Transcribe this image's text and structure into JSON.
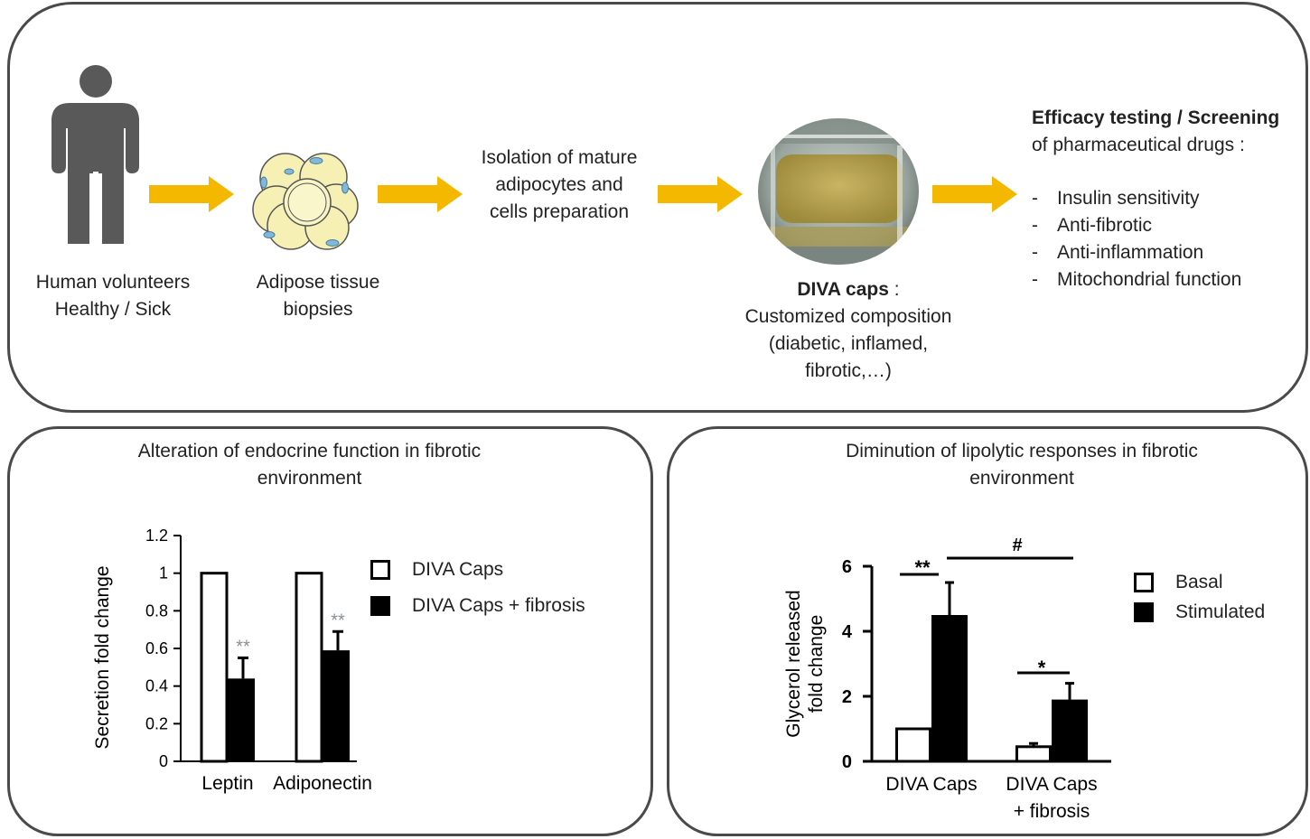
{
  "top": {
    "human_label": [
      "Human volunteers",
      "Healthy / Sick"
    ],
    "adipose_label": [
      "Adipose tissue",
      "biopsies"
    ],
    "isolation_label": [
      "Isolation of mature",
      "adipocytes and",
      "cells preparation"
    ],
    "diva_title": "DIVA caps",
    "diva_colon": " :",
    "diva_desc": [
      "Customized composition",
      "(diabetic, inflamed,",
      "fibrotic,…)"
    ],
    "efficacy_bold": "Efficacy testing / Screening",
    "efficacy_rest": "of pharmaceutical drugs :",
    "efficacy_items": [
      "Insulin sensitivity",
      "Anti-fibrotic",
      "Anti-inflammation",
      "Mitochondrial function"
    ],
    "dash": "-",
    "arrow_color": "#F5B800",
    "person_color": "#595959"
  },
  "left_panel": {
    "title": [
      "Alteration of endocrine function in fibrotic",
      "environment"
    ],
    "legend": [
      "DIVA Caps",
      "DIVA Caps + fibrosis"
    ]
  },
  "right_panel": {
    "title": [
      "Diminution of lipolytic responses in fibrotic",
      "environment"
    ],
    "legend": [
      "Basal",
      "Stimulated"
    ]
  },
  "chart_data": [
    {
      "type": "bar",
      "ylabel": "Secretion fold change",
      "ylim": [
        0,
        1.2
      ],
      "yticks": [
        0,
        0.2,
        0.4,
        0.6,
        0.8,
        1,
        1.2
      ],
      "ytick_labels": [
        "0",
        "0.2",
        "0.4",
        "0.6",
        "0.8",
        "1",
        "1.2"
      ],
      "categories": [
        "Leptin",
        "Adiponectin"
      ],
      "series": [
        {
          "name": "DIVA Caps",
          "values": [
            1.0,
            1.0
          ],
          "errors": [
            0,
            0
          ]
        },
        {
          "name": "DIVA Caps + fibrosis",
          "values": [
            0.44,
            0.59
          ],
          "errors": [
            0.11,
            0.1
          ]
        }
      ],
      "annotations": [
        "**",
        "**"
      ],
      "annotation_color": "#8a8f95"
    },
    {
      "type": "bar",
      "ylabel": [
        "Glycerol released",
        "fold change"
      ],
      "ylim": [
        0,
        6
      ],
      "yticks": [
        0,
        2,
        4,
        6
      ],
      "ytick_labels": [
        "0",
        "2",
        "4",
        "6"
      ],
      "categories": [
        [
          "DIVA Caps"
        ],
        [
          "DIVA Caps",
          "+ fibrosis"
        ]
      ],
      "series": [
        {
          "name": "Basal",
          "values": [
            1.0,
            0.45
          ],
          "errors": [
            0,
            0.1
          ]
        },
        {
          "name": "Stimulated",
          "values": [
            4.5,
            1.9
          ],
          "errors": [
            1.0,
            0.5
          ]
        }
      ],
      "annotations": [
        "**",
        "*",
        "#"
      ]
    }
  ]
}
